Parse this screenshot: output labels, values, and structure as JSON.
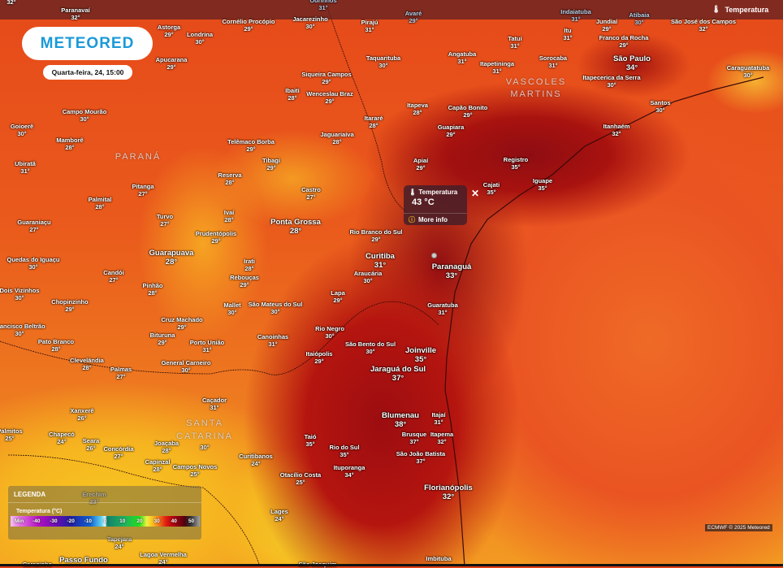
{
  "brand": {
    "logo": "METEORED"
  },
  "date_label": "Quarta-feira, 24, 15:00",
  "layer": {
    "label": "Temperatura",
    "icon": "thermometer-icon"
  },
  "popup": {
    "title": "Temperatura",
    "value": "43 °C",
    "more": "More info",
    "close": "✕"
  },
  "regions": [
    "PARANÁ",
    "SANTA",
    "CATARINA",
    "VASCOLES",
    "MARTINS"
  ],
  "legend": {
    "title": "LEGENDA",
    "unit": "Temperatura (°C)",
    "ticks": [
      "Min",
      "-40",
      "-30",
      "-20",
      "-10",
      "0",
      "10",
      "20",
      "30",
      "40",
      "50"
    ]
  },
  "credit": "ECMWF © 2025 Meteored",
  "cities": [
    {
      "name": "",
      "temp": "32°"
    },
    {
      "name": "Paranavaí",
      "temp": "32°"
    },
    {
      "name": "Ourinhos",
      "temp": "31°"
    },
    {
      "name": "Avaré",
      "temp": "29°"
    },
    {
      "name": "Indaiatuba",
      "temp": "31°"
    },
    {
      "name": "Atibaia",
      "temp": "30°"
    },
    {
      "name": "Astorga",
      "temp": "29°"
    },
    {
      "name": "Londrina",
      "temp": "30°"
    },
    {
      "name": "Apucarana",
      "temp": "29°"
    },
    {
      "name": "Cornélio Procópio",
      "temp": "29°"
    },
    {
      "name": "Jacarezinho",
      "temp": "30°"
    },
    {
      "name": "Pirajú",
      "temp": "31°"
    },
    {
      "name": "Taquarituba",
      "temp": "30°"
    },
    {
      "name": "Siqueira Campos",
      "temp": "29°"
    },
    {
      "name": "Ibaiti",
      "temp": "28°"
    },
    {
      "name": "Wenceslau Braz",
      "temp": "29°"
    },
    {
      "name": "Campo Mourão",
      "temp": "30°"
    },
    {
      "name": "Goioerê",
      "temp": "30°"
    },
    {
      "name": "Mamborê",
      "temp": "28°"
    },
    {
      "name": "Ubiratã",
      "temp": "31°"
    },
    {
      "name": "Telêmaco Borba",
      "temp": "29°"
    },
    {
      "name": "Tibagi",
      "temp": "29°"
    },
    {
      "name": "Jaguariaíva",
      "temp": "28°"
    },
    {
      "name": "Reserva",
      "temp": "28°"
    },
    {
      "name": "Pitanga",
      "temp": "27°"
    },
    {
      "name": "Castro",
      "temp": "27°"
    },
    {
      "name": "Itararé",
      "temp": "28°"
    },
    {
      "name": "Itapeva",
      "temp": "28°"
    },
    {
      "name": "Capão Bonito",
      "temp": "29°"
    },
    {
      "name": "Guapiara",
      "temp": "29°"
    },
    {
      "name": "Apiaí",
      "temp": "29°"
    },
    {
      "name": "Angatuba",
      "temp": "31°"
    },
    {
      "name": "Itapetininga",
      "temp": "31°"
    },
    {
      "name": "Tatuí",
      "temp": "31°"
    },
    {
      "name": "Sorocaba",
      "temp": "31°"
    },
    {
      "name": "Itu",
      "temp": "31°"
    },
    {
      "name": "Jundiaí",
      "temp": "29°"
    },
    {
      "name": "Franco da Rocha",
      "temp": "29°"
    },
    {
      "name": "São José dos Campos",
      "temp": "32°"
    },
    {
      "name": "São Paulo",
      "temp": "34°"
    },
    {
      "name": "Itapecerica da Serra",
      "temp": "30°"
    },
    {
      "name": "Caraguatatuba",
      "temp": "30°"
    },
    {
      "name": "Santos",
      "temp": "30°"
    },
    {
      "name": "Itanhaém",
      "temp": "32°"
    },
    {
      "name": "Registro",
      "temp": "35°"
    },
    {
      "name": "Cajati",
      "temp": "35°"
    },
    {
      "name": "Iguape",
      "temp": "35°"
    },
    {
      "name": "Palmital",
      "temp": "28°"
    },
    {
      "name": "Guaraniaçu",
      "temp": "27°"
    },
    {
      "name": "Turvo",
      "temp": "27°"
    },
    {
      "name": "Ivaí",
      "temp": "28°"
    },
    {
      "name": "Ponta Grossa",
      "temp": "28°"
    },
    {
      "name": "Prudentópolis",
      "temp": "29°"
    },
    {
      "name": "Rio Branco do Sul",
      "temp": "29°"
    },
    {
      "name": "Guarapuava",
      "temp": "28°"
    },
    {
      "name": "Quedas do Iguaçu",
      "temp": "30°"
    },
    {
      "name": "Irati",
      "temp": "28°"
    },
    {
      "name": "Candói",
      "temp": "27°"
    },
    {
      "name": "Rebouças",
      "temp": "29°"
    },
    {
      "name": "Curitiba",
      "temp": "31°"
    },
    {
      "name": "Araucária",
      "temp": "30°"
    },
    {
      "name": "Paranaguá",
      "temp": "33°"
    },
    {
      "name": "Pinhão",
      "temp": "28°"
    },
    {
      "name": "Dois Vizinhos",
      "temp": "30°"
    },
    {
      "name": "Lapa",
      "temp": "29°"
    },
    {
      "name": "Chopinzinho",
      "temp": "29°"
    },
    {
      "name": "Mallet",
      "temp": "30°"
    },
    {
      "name": "São Mateus do Sul",
      "temp": "30°"
    },
    {
      "name": "Guaratuba",
      "temp": "31°"
    },
    {
      "name": "Cruz Machado",
      "temp": "29°"
    },
    {
      "name": "Francisco Beltrão",
      "temp": "30°"
    },
    {
      "name": "Bituruna",
      "temp": "29°"
    },
    {
      "name": "Rio Negro",
      "temp": "30°"
    },
    {
      "name": "Canoinhas",
      "temp": "31°"
    },
    {
      "name": "Pato Branco",
      "temp": "28°"
    },
    {
      "name": "Porto União",
      "temp": "31°"
    },
    {
      "name": "São Bento do Sul",
      "temp": "30°"
    },
    {
      "name": "Joinville",
      "temp": "35°"
    },
    {
      "name": "Clevelândia",
      "temp": "28°"
    },
    {
      "name": "General Carneiro",
      "temp": "30°"
    },
    {
      "name": "Palmas",
      "temp": "27°"
    },
    {
      "name": "Itaiópolis",
      "temp": "29°"
    },
    {
      "name": "Jaraguá do Sul",
      "temp": "37°"
    },
    {
      "name": "Caçador",
      "temp": "31°"
    },
    {
      "name": "Xanxerê",
      "temp": "26°"
    },
    {
      "name": "Blumenau",
      "temp": "38°"
    },
    {
      "name": "Itajaí",
      "temp": "31°"
    },
    {
      "name": "",
      "temp": "30°"
    },
    {
      "name": "Palmitos",
      "temp": "25°"
    },
    {
      "name": "Chapecó",
      "temp": "24°"
    },
    {
      "name": "Taió",
      "temp": "35°"
    },
    {
      "name": "Brusque",
      "temp": "37°"
    },
    {
      "name": "Itapema",
      "temp": "32°"
    },
    {
      "name": "Seara",
      "temp": "26°"
    },
    {
      "name": "Joaçaba",
      "temp": "28°"
    },
    {
      "name": "Concórdia",
      "temp": "27°"
    },
    {
      "name": "Rio do Sul",
      "temp": "35°"
    },
    {
      "name": "São João Batista",
      "temp": "37°"
    },
    {
      "name": "Capinzal",
      "temp": "28°"
    },
    {
      "name": "Campos Novos",
      "temp": "25°"
    },
    {
      "name": "Curitibanos",
      "temp": "24°"
    },
    {
      "name": "Ituporanga",
      "temp": "34°"
    },
    {
      "name": "Otacílio Costa",
      "temp": "25°"
    },
    {
      "name": "Florianópolis",
      "temp": "32°"
    },
    {
      "name": "Erechim",
      "temp": "23°"
    },
    {
      "name": "Lages",
      "temp": "24°"
    },
    {
      "name": "Tapejara",
      "temp": "24°"
    },
    {
      "name": "Lagoa Vermelha",
      "temp": "24°"
    },
    {
      "name": "Passo Fundo",
      "temp": ""
    },
    {
      "name": "Carazinho",
      "temp": ""
    },
    {
      "name": "São Joaquim",
      "temp": ""
    },
    {
      "name": "Imbituba",
      "temp": ""
    }
  ]
}
